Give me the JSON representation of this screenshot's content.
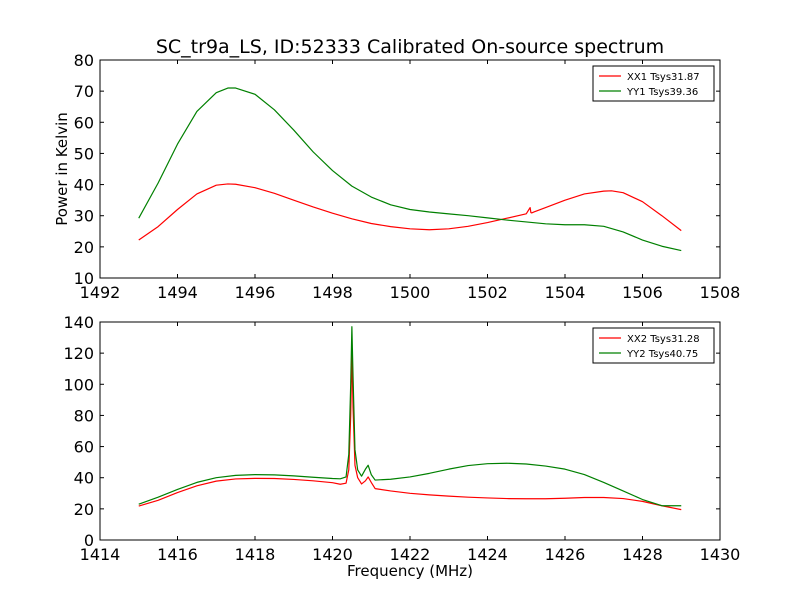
{
  "chart_data": [
    {
      "type": "line",
      "title": "SC_tr9a_LS, ID:52333 Calibrated On-source spectrum",
      "xlabel": "",
      "ylabel": "Power in Kelvin",
      "xlim": [
        1492,
        1508
      ],
      "ylim": [
        10,
        80
      ],
      "xticks": [
        1492,
        1494,
        1496,
        1498,
        1500,
        1502,
        1504,
        1506,
        1508
      ],
      "yticks": [
        10,
        20,
        30,
        40,
        50,
        60,
        70,
        80
      ],
      "legend_position": "top-right",
      "grid": false,
      "series": [
        {
          "name": "XX1 Tsys31.87",
          "color": "#ff0000",
          "x": [
            1493.0,
            1493.5,
            1494.0,
            1494.5,
            1495.0,
            1495.3,
            1495.5,
            1496.0,
            1496.5,
            1497.0,
            1497.5,
            1498.0,
            1498.5,
            1499.0,
            1499.5,
            1500.0,
            1500.5,
            1501.0,
            1501.5,
            1502.0,
            1502.5,
            1503.0,
            1503.1,
            1503.12,
            1503.14,
            1503.2,
            1503.5,
            1504.0,
            1504.5,
            1505.0,
            1505.2,
            1505.5,
            1506.0,
            1506.5,
            1507.0
          ],
          "y": [
            22.2,
            26.5,
            32.0,
            37.0,
            39.8,
            40.2,
            40.1,
            39.0,
            37.2,
            35.0,
            32.8,
            30.8,
            29.0,
            27.5,
            26.5,
            25.8,
            25.5,
            25.8,
            26.6,
            27.8,
            29.2,
            30.6,
            32.6,
            31.0,
            30.9,
            31.2,
            32.6,
            35.0,
            37.0,
            37.9,
            38.0,
            37.4,
            34.5,
            30.0,
            25.2
          ]
        },
        {
          "name": "YY1 Tsys39.36",
          "color": "#008000",
          "x": [
            1493.0,
            1493.5,
            1494.0,
            1494.5,
            1495.0,
            1495.3,
            1495.5,
            1496.0,
            1496.5,
            1497.0,
            1497.5,
            1498.0,
            1498.5,
            1499.0,
            1499.5,
            1500.0,
            1500.5,
            1501.0,
            1501.5,
            1502.0,
            1502.5,
            1503.0,
            1503.5,
            1504.0,
            1504.5,
            1505.0,
            1505.5,
            1506.0,
            1506.5,
            1507.0
          ],
          "y": [
            29.2,
            40.5,
            53.0,
            63.5,
            69.5,
            71.0,
            71.0,
            69.0,
            64.0,
            57.5,
            50.5,
            44.5,
            39.5,
            36.0,
            33.5,
            32.0,
            31.2,
            30.6,
            30.0,
            29.3,
            28.6,
            28.0,
            27.4,
            27.1,
            27.1,
            26.6,
            24.8,
            22.2,
            20.2,
            18.8
          ]
        }
      ]
    },
    {
      "type": "line",
      "title": "",
      "xlabel": "Frequency (MHz)",
      "ylabel": "",
      "xlim": [
        1414,
        1430
      ],
      "ylim": [
        0,
        140
      ],
      "xticks": [
        1414,
        1416,
        1418,
        1420,
        1422,
        1424,
        1426,
        1428,
        1430
      ],
      "yticks": [
        0,
        20,
        40,
        60,
        80,
        100,
        120,
        140
      ],
      "legend_position": "top-right",
      "grid": false,
      "series": [
        {
          "name": "XX2 Tsys31.28",
          "color": "#ff0000",
          "x": [
            1415.0,
            1415.5,
            1416.0,
            1416.5,
            1417.0,
            1417.5,
            1418.0,
            1418.5,
            1419.0,
            1419.5,
            1420.0,
            1420.2,
            1420.35,
            1420.42,
            1420.47,
            1420.5,
            1420.53,
            1420.58,
            1420.65,
            1420.75,
            1420.85,
            1420.92,
            1421.0,
            1421.1,
            1421.5,
            1422.0,
            1422.5,
            1423.0,
            1423.5,
            1424.0,
            1424.5,
            1425.0,
            1425.5,
            1426.0,
            1426.5,
            1427.0,
            1427.5,
            1428.0,
            1428.5,
            1429.0
          ],
          "y": [
            21.8,
            25.5,
            30.5,
            34.8,
            37.8,
            39.2,
            39.6,
            39.5,
            38.9,
            38.0,
            36.8,
            35.8,
            36.5,
            45.0,
            80.0,
            122.0,
            85.0,
            48.0,
            40.0,
            36.0,
            38.0,
            40.5,
            37.0,
            33.0,
            31.5,
            30.0,
            29.0,
            28.2,
            27.5,
            27.0,
            26.6,
            26.5,
            26.5,
            26.8,
            27.3,
            27.3,
            26.6,
            24.8,
            22.0,
            19.5
          ]
        },
        {
          "name": "YY2 Tsys40.75",
          "color": "#008000",
          "x": [
            1415.0,
            1415.5,
            1416.0,
            1416.5,
            1417.0,
            1417.5,
            1418.0,
            1418.5,
            1419.0,
            1419.5,
            1420.0,
            1420.2,
            1420.35,
            1420.42,
            1420.47,
            1420.5,
            1420.53,
            1420.58,
            1420.65,
            1420.75,
            1420.85,
            1420.92,
            1421.0,
            1421.1,
            1421.5,
            1422.0,
            1422.5,
            1423.0,
            1423.5,
            1424.0,
            1424.5,
            1425.0,
            1425.5,
            1426.0,
            1426.5,
            1427.0,
            1427.5,
            1428.0,
            1428.5,
            1429.0
          ],
          "y": [
            23.0,
            27.5,
            32.5,
            37.0,
            40.0,
            41.5,
            42.0,
            41.8,
            41.2,
            40.3,
            39.5,
            39.3,
            40.5,
            55.0,
            100.0,
            137.0,
            105.0,
            58.0,
            45.0,
            41.0,
            45.5,
            48.0,
            42.0,
            38.5,
            39.0,
            40.5,
            42.8,
            45.5,
            47.8,
            49.0,
            49.3,
            48.8,
            47.5,
            45.5,
            42.0,
            37.0,
            31.5,
            26.0,
            22.0,
            22.0
          ]
        }
      ]
    }
  ]
}
